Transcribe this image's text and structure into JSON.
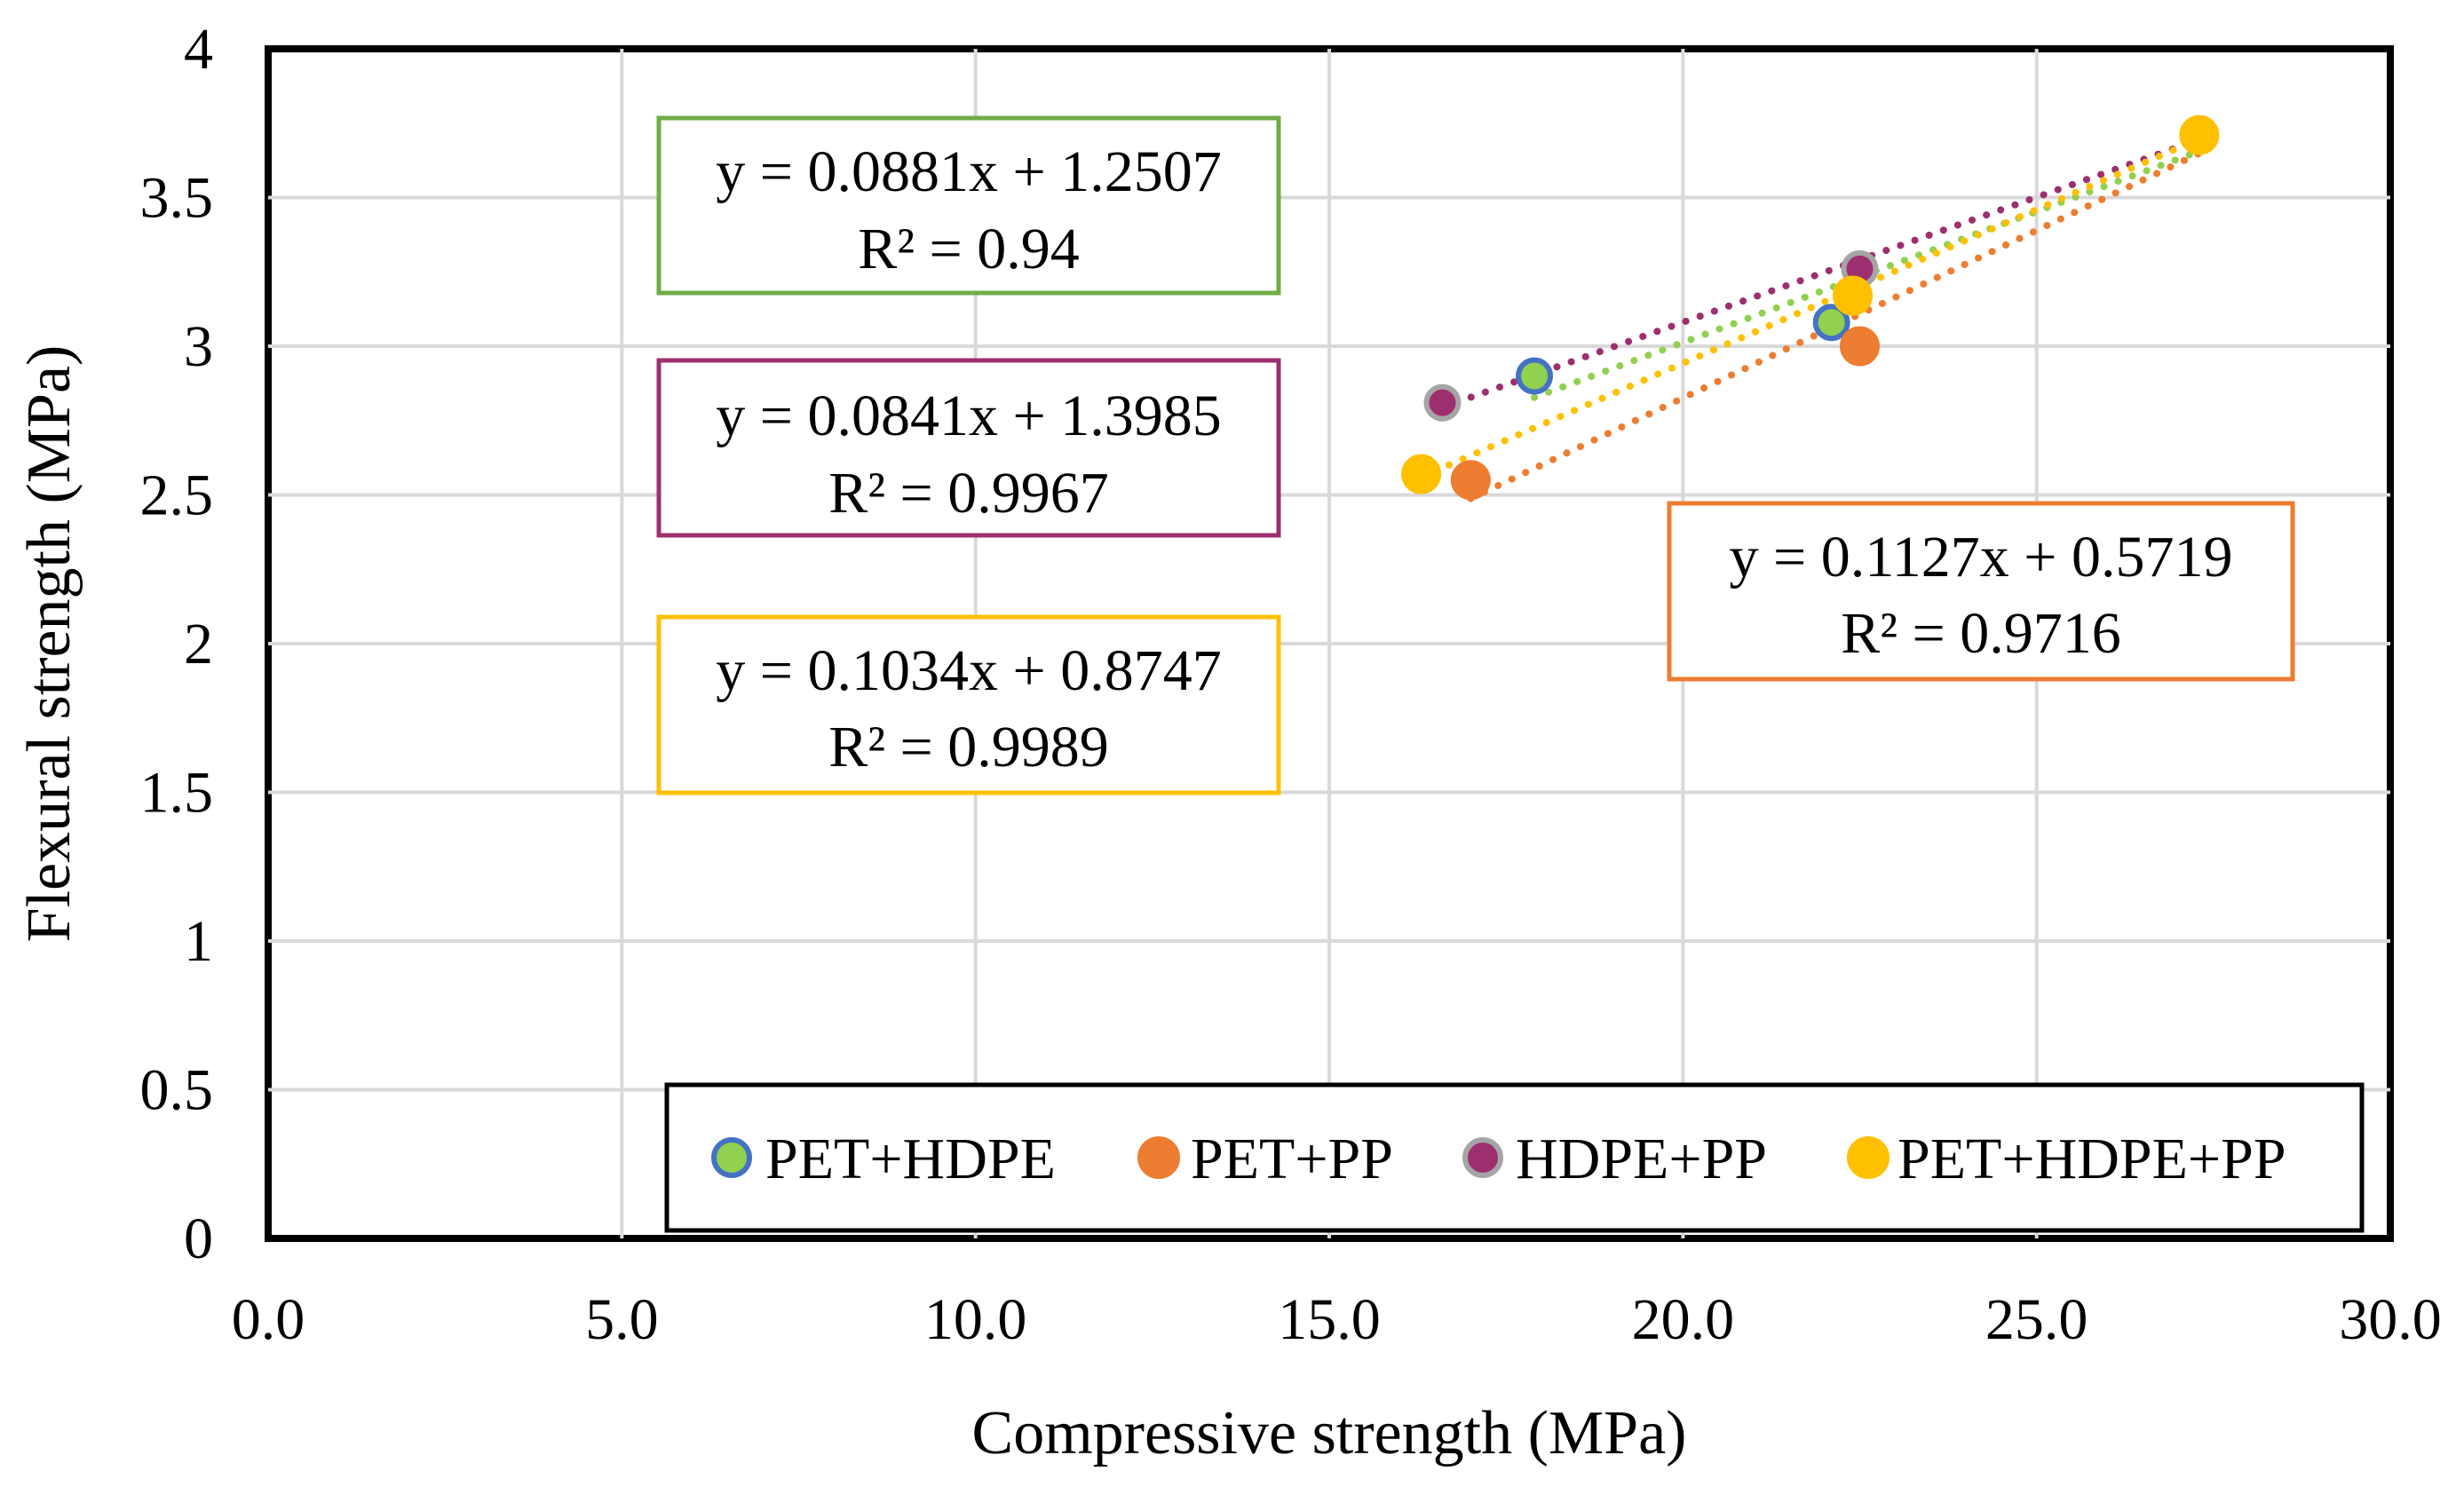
{
  "chart_data": {
    "type": "scatter",
    "title": "",
    "xlabel": "Compressive strength (MPa)",
    "ylabel": "Flexural strength (MPa)",
    "xlim": [
      0,
      30
    ],
    "ylim": [
      0,
      4
    ],
    "grid": true,
    "x_ticks": [
      0,
      5,
      10,
      15,
      20,
      25,
      30
    ],
    "x_tick_labels": [
      "0.0",
      "5.0",
      "10.0",
      "15.0",
      "20.0",
      "25.0",
      "30.0"
    ],
    "y_ticks": [
      0,
      0.5,
      1,
      1.5,
      2,
      2.5,
      3,
      3.5,
      4
    ],
    "y_tick_labels": [
      "0",
      "0.5",
      "1",
      "1.5",
      "2",
      "2.5",
      "3",
      "3.5",
      "4"
    ],
    "legend_position": "bottom-right",
    "series": [
      {
        "name": "PET+HDPE",
        "color": "#92D050",
        "edge_color": "#4472C4",
        "points": [
          [
            17.9,
            2.9
          ],
          [
            22.1,
            3.08
          ]
        ],
        "trendline": {
          "slope": 0.0881,
          "intercept": 1.2507,
          "x_range": [
            17.9,
            27.3
          ]
        },
        "equation": "y = 0.0881x + 1.2507",
        "r2": "R² = 0.94"
      },
      {
        "name": "PET+PP",
        "color": "#ED7D31",
        "edge_color": "#ED7D31",
        "points": [
          [
            17.0,
            2.55
          ],
          [
            22.5,
            3.0
          ]
        ],
        "trendline": {
          "slope": 0.1127,
          "intercept": 0.5719,
          "x_range": [
            17.0,
            27.3
          ]
        },
        "equation": "y = 0.1127x + 0.5719",
        "r2": "R² = 0.9716"
      },
      {
        "name": "HDPE+PP",
        "color": "#9E2F6E",
        "edge_color": "#A5A5A5",
        "points": [
          [
            16.6,
            2.81
          ],
          [
            22.5,
            3.26
          ]
        ],
        "trendline": {
          "slope": 0.0841,
          "intercept": 1.3985,
          "x_range": [
            16.6,
            27.3
          ]
        },
        "equation": "y = 0.0841x + 1.3985",
        "r2": "R² = 0.9967"
      },
      {
        "name": "PET+HDPE+PP",
        "color": "#FFC000",
        "edge_color": "#FFC000",
        "points": [
          [
            16.3,
            2.57
          ],
          [
            22.4,
            3.17
          ],
          [
            27.3,
            3.71
          ]
        ],
        "trendline": {
          "slope": 0.1034,
          "intercept": 0.8747,
          "x_range": [
            16.3,
            27.3
          ]
        },
        "equation": "y = 0.1034x + 0.8747",
        "r2": "R² = 0.9989"
      }
    ]
  }
}
